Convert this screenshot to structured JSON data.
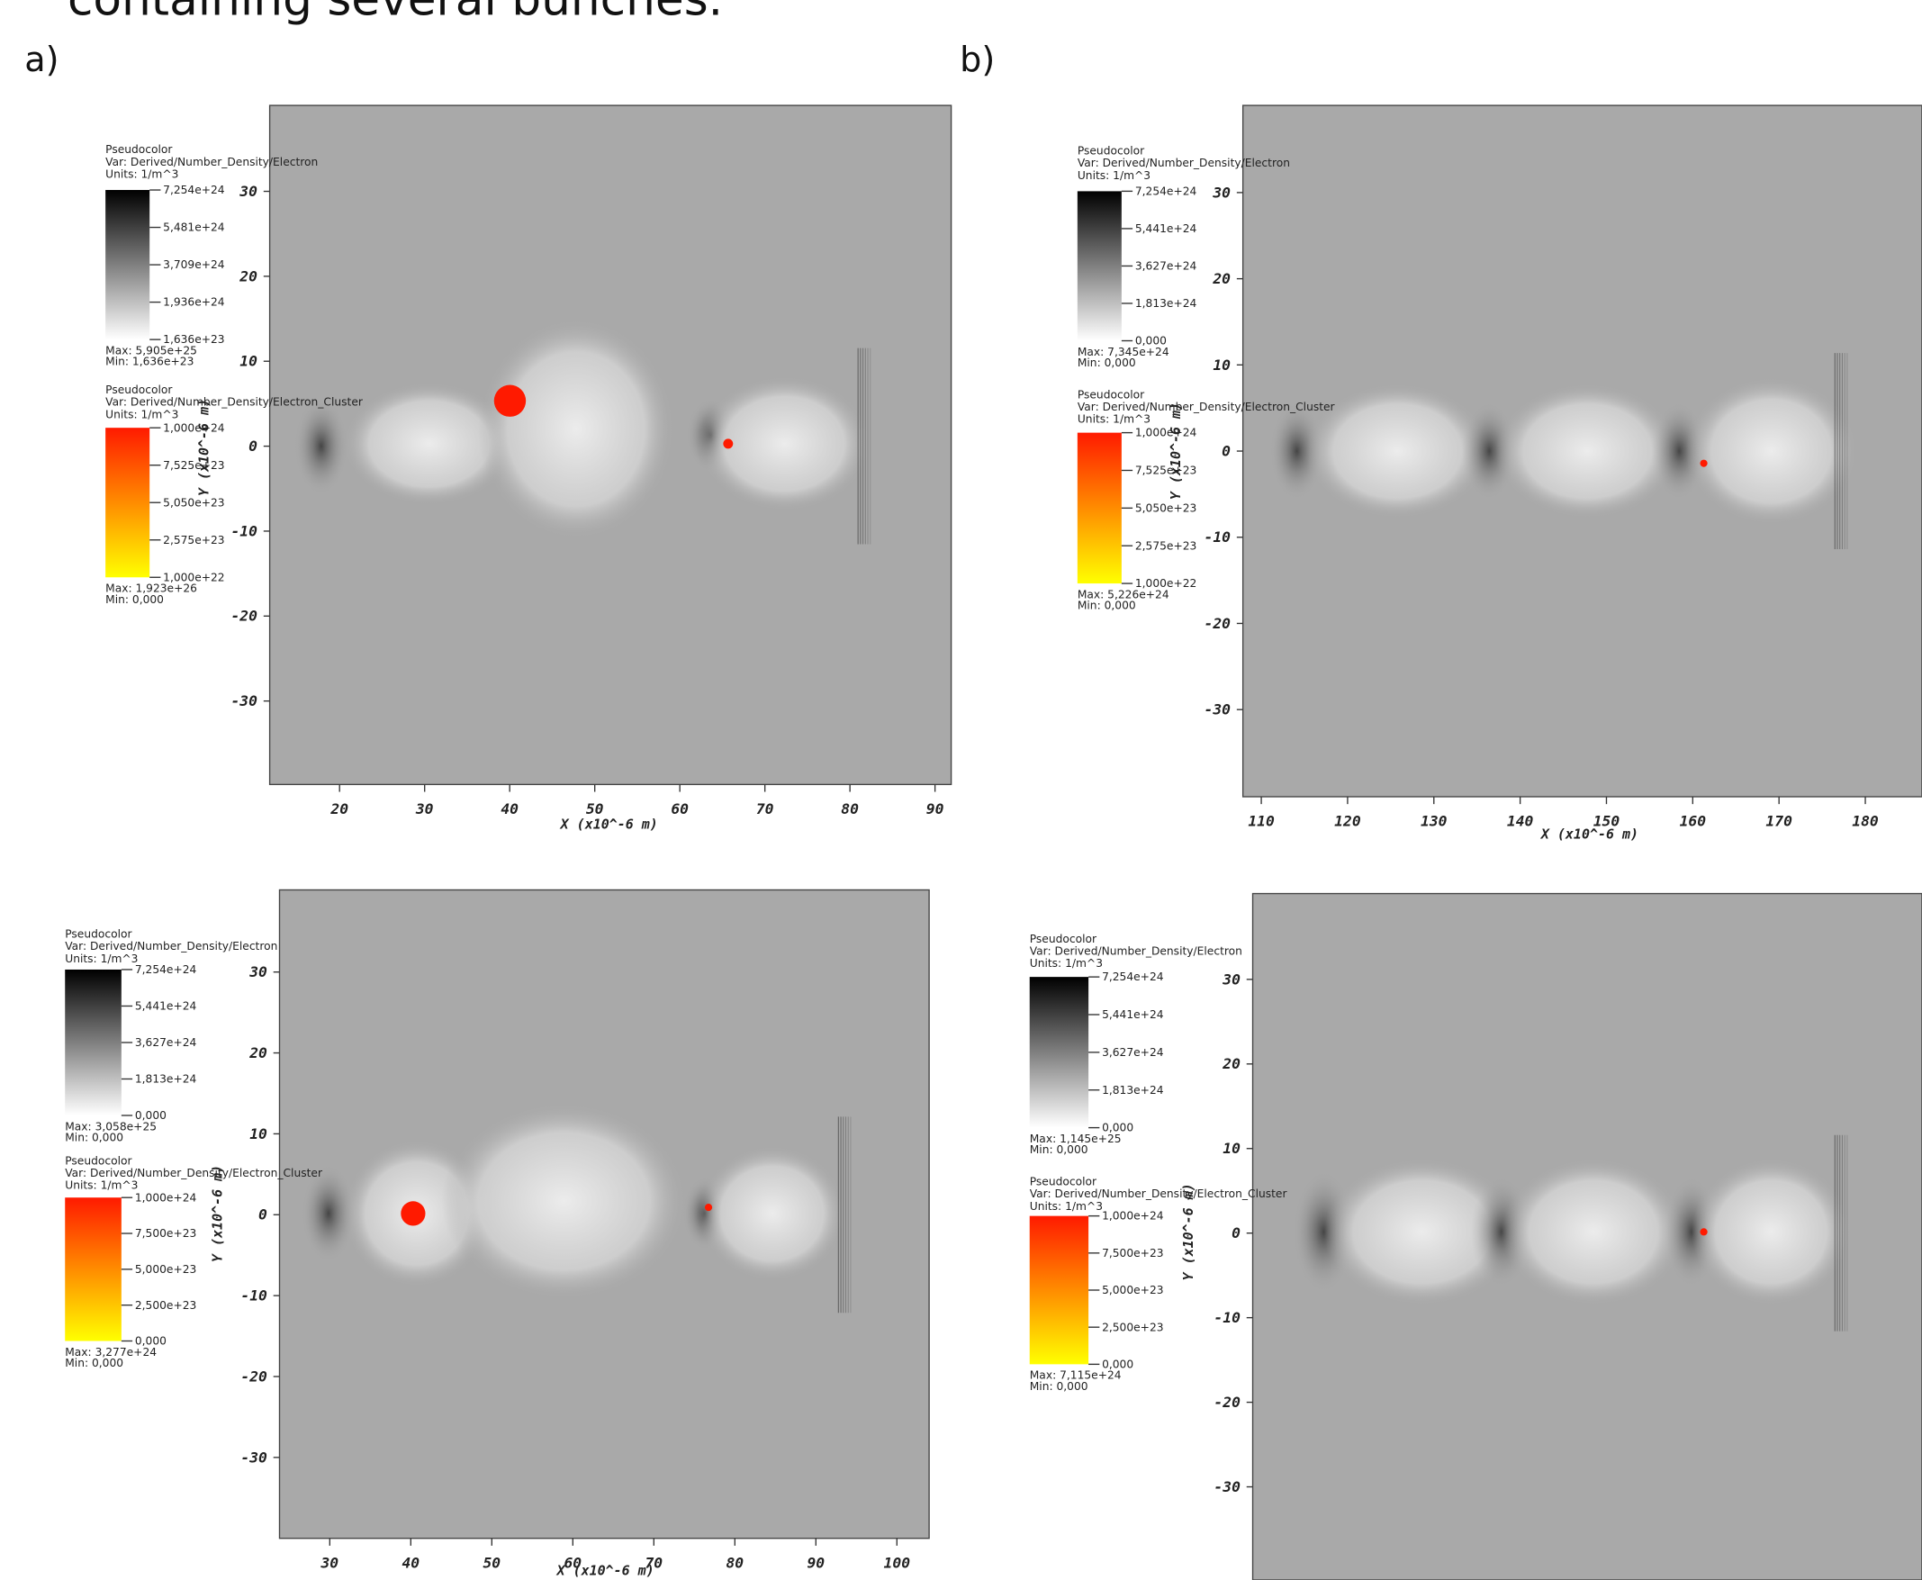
{
  "caption": "containing several bunches.",
  "panel_labels": [
    "a)",
    "b)"
  ],
  "panels": [
    {
      "legends": [
        {
          "title": "Pseudocolor",
          "var": "Var: Derived/Number_Density/Electron",
          "units": "Units: 1/m^3",
          "ticks": [
            "7,254e+24",
            "5,481e+24",
            "3,709e+24",
            "1,936e+24",
            "1,636e+23"
          ],
          "max": "Max: 5,905e+25",
          "min": "Min: 1,636e+23"
        },
        {
          "title": "Pseudocolor",
          "var": "Var: Derived/Number_Density/Electron_Cluster",
          "units": "Units: 1/m^3",
          "ticks": [
            "1,000e+24",
            "7,525e+23",
            "5,050e+23",
            "2,575e+23",
            "1,000e+22"
          ],
          "max": "Max: 1,923e+26",
          "min": "Min: 0,000"
        }
      ],
      "xticks": [
        20,
        30,
        40,
        50,
        60,
        70,
        80,
        90
      ],
      "yticks": [
        30,
        20,
        10,
        0,
        -10,
        -20,
        -30
      ],
      "xlabel": "X (x10^-6 m)",
      "ylabel": "Y (x10^-6 m)"
    },
    {
      "legends": [
        {
          "title": "Pseudocolor",
          "var": "Var: Derived/Number_Density/Electron",
          "units": "Units: 1/m^3",
          "ticks": [
            "7,254e+24",
            "5,441e+24",
            "3,627e+24",
            "1,813e+24",
            "0,000"
          ],
          "max": "Max: 7,345e+24",
          "min": "Min: 0,000"
        },
        {
          "title": "Pseudocolor",
          "var": "Var: Derived/Number_Density/Electron_Cluster",
          "units": "Units: 1/m^3",
          "ticks": [
            "1,000e+24",
            "7,525e+23",
            "5,050e+23",
            "2,575e+23",
            "1,000e+22"
          ],
          "max": "Max: 5,226e+24",
          "min": "Min: 0,000"
        }
      ],
      "xticks": [
        110,
        120,
        130,
        140,
        150,
        160,
        170,
        180
      ],
      "yticks": [
        30,
        20,
        10,
        0,
        -10,
        -20,
        -30
      ],
      "xlabel": "X (x10^-6 m)",
      "ylabel": "Y (x10^-6 m)"
    },
    {
      "legends": [
        {
          "title": "Pseudocolor",
          "var": "Var: Derived/Number_Density/Electron",
          "units": "Units: 1/m^3",
          "ticks": [
            "7,254e+24",
            "5,441e+24",
            "3,627e+24",
            "1,813e+24",
            "0,000"
          ],
          "max": "Max: 3,058e+25",
          "min": "Min: 0,000"
        },
        {
          "title": "Pseudocolor",
          "var": "Var: Derived/Number_Density/Electron_Cluster",
          "units": "Units: 1/m^3",
          "ticks": [
            "1,000e+24",
            "7,500e+23",
            "5,000e+23",
            "2,500e+23",
            "0,000"
          ],
          "max": "Max: 3,277e+24",
          "min": "Min: 0,000"
        }
      ],
      "xticks": [
        30,
        40,
        50,
        60,
        70,
        80,
        90,
        100
      ],
      "yticks": [
        30,
        20,
        10,
        0,
        -10,
        -20,
        -30
      ],
      "xlabel": "X (x10^-6 m)",
      "ylabel": "Y (x10^-6 m)"
    },
    {
      "legends": [
        {
          "title": "Pseudocolor",
          "var": "Var: Derived/Number_Density/Electron",
          "units": "Units: 1/m^3",
          "ticks": [
            "7,254e+24",
            "5,441e+24",
            "3,627e+24",
            "1,813e+24",
            "0,000"
          ],
          "max": "Max: 1,145e+25",
          "min": "Min: 0,000"
        },
        {
          "title": "Pseudocolor",
          "var": "Var: Derived/Number_Density/Electron_Cluster",
          "units": "Units: 1/m^3",
          "ticks": [
            "1,000e+24",
            "7,500e+23",
            "5,000e+23",
            "2,500e+23",
            "0,000"
          ],
          "max": "Max: 7,115e+24",
          "min": "Min: 0,000"
        }
      ],
      "yticks": [
        30,
        20,
        10,
        0,
        -10,
        -20,
        -30
      ],
      "ylabel": "Y (x10^-6 m)"
    }
  ]
}
